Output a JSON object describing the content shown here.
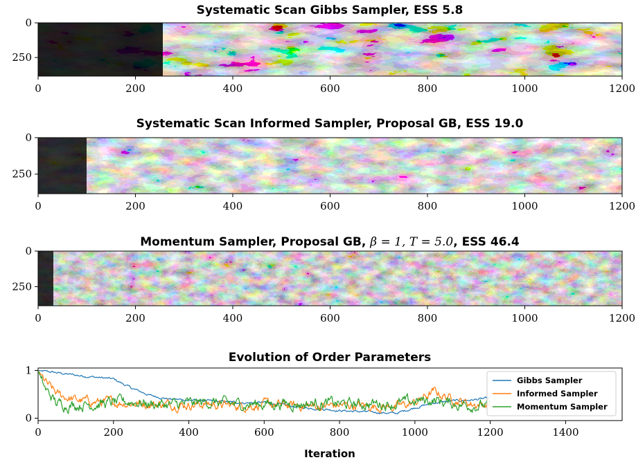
{
  "chart_data": [
    {
      "type": "heatmap",
      "title": "Systematic Scan Gibbs Sampler, ESS 5.8",
      "xlim": [
        0,
        1200
      ],
      "ylim": [
        0,
        384
      ],
      "x_ticks": [
        "0",
        "200",
        "400",
        "600",
        "800",
        "1000",
        "1200"
      ],
      "y_ticks": [
        "0",
        "250"
      ],
      "colormap": "gray"
    },
    {
      "type": "heatmap",
      "title": "Systematic Scan Informed Sampler, Proposal GB, ESS 19.0",
      "xlim": [
        0,
        1200
      ],
      "ylim": [
        0,
        384
      ],
      "x_ticks": [
        "0",
        "200",
        "400",
        "600",
        "800",
        "1000",
        "1200"
      ],
      "y_ticks": [
        "0",
        "250"
      ],
      "colormap": "gray"
    },
    {
      "type": "heatmap",
      "title_parts": [
        "Momentum Sampler, Proposal GB, ",
        "β = 1, T = 5.0",
        ", ESS 46.4"
      ],
      "xlim": [
        0,
        1200
      ],
      "ylim": [
        0,
        384
      ],
      "x_ticks": [
        "0",
        "200",
        "400",
        "600",
        "800",
        "1000",
        "1200"
      ],
      "y_ticks": [
        "0",
        "250"
      ],
      "colormap": "gray"
    },
    {
      "type": "line",
      "title": "Evolution of Order Parameters",
      "xlabel": "Iteration",
      "xlim": [
        0,
        1550
      ],
      "ylim": [
        -0.05,
        1.05
      ],
      "x_ticks": [
        "0",
        "200",
        "400",
        "600",
        "800",
        "1000",
        "1200",
        "1400"
      ],
      "y_ticks": [
        "0",
        "1"
      ],
      "legend_position": "right",
      "series": [
        {
          "name": "Gibbs Sampler",
          "color": "#1f77b4",
          "points": [
            [
              0,
              1.0
            ],
            [
              50,
              0.95
            ],
            [
              100,
              0.9
            ],
            [
              150,
              0.86
            ],
            [
              200,
              0.82
            ],
            [
              250,
              0.62
            ],
            [
              300,
              0.47
            ],
            [
              350,
              0.4
            ],
            [
              400,
              0.38
            ],
            [
              450,
              0.36
            ],
            [
              500,
              0.34
            ],
            [
              550,
              0.32
            ],
            [
              600,
              0.33
            ],
            [
              650,
              0.28
            ],
            [
              700,
              0.22
            ],
            [
              750,
              0.2
            ],
            [
              800,
              0.16
            ],
            [
              850,
              0.14
            ],
            [
              900,
              0.12
            ],
            [
              950,
              0.1
            ],
            [
              1000,
              0.22
            ],
            [
              1050,
              0.32
            ],
            [
              1100,
              0.36
            ],
            [
              1150,
              0.38
            ],
            [
              1200,
              0.42
            ]
          ]
        },
        {
          "name": "Informed Sampler",
          "color": "#ff7f0e",
          "points": [
            [
              0,
              1.0
            ],
            [
              25,
              0.7
            ],
            [
              50,
              0.5
            ],
            [
              100,
              0.38
            ],
            [
              150,
              0.34
            ],
            [
              200,
              0.33
            ],
            [
              250,
              0.32
            ],
            [
              300,
              0.3
            ],
            [
              350,
              0.29
            ],
            [
              400,
              0.28
            ],
            [
              450,
              0.3
            ],
            [
              500,
              0.27
            ],
            [
              550,
              0.26
            ],
            [
              600,
              0.28
            ],
            [
              650,
              0.27
            ],
            [
              700,
              0.26
            ],
            [
              750,
              0.25
            ],
            [
              800,
              0.27
            ],
            [
              850,
              0.26
            ],
            [
              900,
              0.25
            ],
            [
              950,
              0.24
            ],
            [
              1000,
              0.32
            ],
            [
              1050,
              0.55
            ],
            [
              1100,
              0.4
            ],
            [
              1150,
              0.3
            ],
            [
              1200,
              0.28
            ]
          ]
        },
        {
          "name": "Momentum Sampler",
          "color": "#2ca02c",
          "points": [
            [
              0,
              1.0
            ],
            [
              20,
              0.6
            ],
            [
              50,
              0.3
            ],
            [
              100,
              0.28
            ],
            [
              150,
              0.3
            ],
            [
              200,
              0.32
            ],
            [
              250,
              0.35
            ],
            [
              300,
              0.3
            ],
            [
              350,
              0.28
            ],
            [
              400,
              0.3
            ],
            [
              450,
              0.34
            ],
            [
              500,
              0.3
            ],
            [
              550,
              0.29
            ],
            [
              600,
              0.3
            ],
            [
              650,
              0.31
            ],
            [
              700,
              0.3
            ],
            [
              750,
              0.32
            ],
            [
              800,
              0.3
            ],
            [
              850,
              0.29
            ],
            [
              900,
              0.31
            ],
            [
              950,
              0.3
            ],
            [
              1000,
              0.35
            ],
            [
              1050,
              0.38
            ],
            [
              1100,
              0.3
            ],
            [
              1150,
              0.28
            ],
            [
              1200,
              0.26
            ]
          ]
        }
      ]
    }
  ]
}
